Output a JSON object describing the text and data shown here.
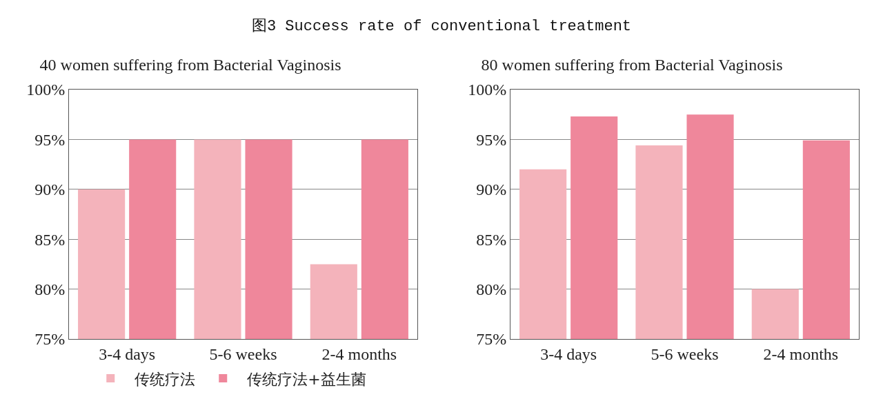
{
  "chart_data": [
    {
      "type": "bar",
      "title": "图3 Success rate of conventional treatment",
      "subtitle": "40 women suffering from Bacterial Vaginosis",
      "categories": [
        "3-4 days",
        "5-6 weeks",
        "2-4 months"
      ],
      "series": [
        {
          "name": "传统疗法",
          "color": "#f4b3bb",
          "values": [
            90,
            95,
            82.5
          ]
        },
        {
          "name": "传统疗法+益生菌",
          "color": "#ef879b",
          "values": [
            95,
            95,
            95
          ]
        }
      ],
      "ylim": [
        75,
        100
      ],
      "yticks": [
        {
          "value": 75,
          "label": "75%"
        },
        {
          "value": 80,
          "label": "80%"
        },
        {
          "value": 85,
          "label": "85%"
        },
        {
          "value": 90,
          "label": "90%"
        },
        {
          "value": 95,
          "label": "95%"
        },
        {
          "value": 100,
          "label": "100%"
        }
      ],
      "grid": "y",
      "legend": "bottom"
    },
    {
      "type": "bar",
      "subtitle": "80 women suffering from Bacterial Vaginosis",
      "categories": [
        "3-4 days",
        "5-6 weeks",
        "2-4 months"
      ],
      "series": [
        {
          "color": "#f4b3bb",
          "values": [
            92,
            94.4,
            80
          ]
        },
        {
          "color": "#ef879b",
          "values": [
            97.3,
            97.5,
            94.9
          ]
        }
      ],
      "ylim": [
        75,
        100
      ],
      "yticks": [
        {
          "value": 75,
          "label": "75%"
        },
        {
          "value": 80,
          "label": "80%"
        },
        {
          "value": 85,
          "label": "85%"
        },
        {
          "value": 90,
          "label": "90%"
        },
        {
          "value": 95,
          "label": "95%"
        },
        {
          "value": 100,
          "label": "100%"
        }
      ],
      "grid": "y",
      "legend": false
    }
  ]
}
